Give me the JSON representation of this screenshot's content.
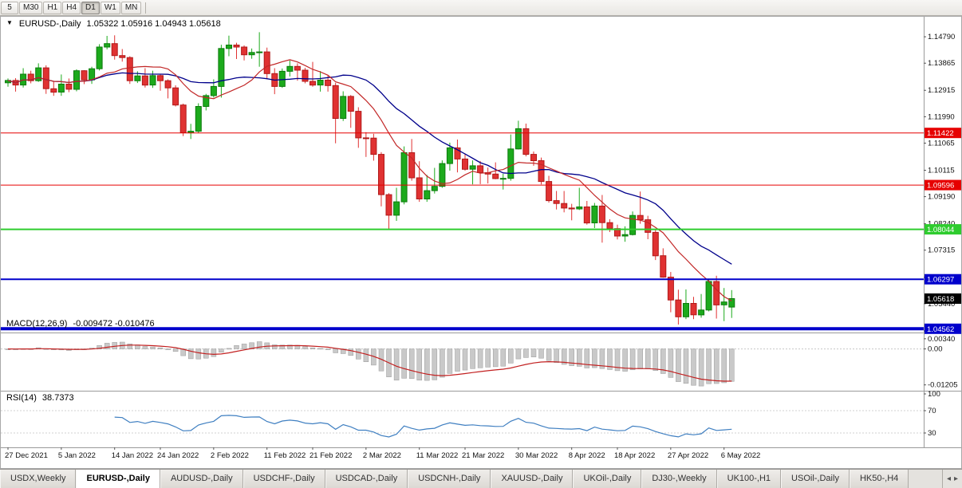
{
  "toolbar": {
    "timeframes": [
      "5",
      "M30",
      "H1",
      "H4",
      "D1",
      "W1",
      "MN"
    ],
    "active_timeframe": "D1"
  },
  "header": {
    "symbol": "EURUSD-,Daily",
    "ohlc": "1.05322 1.05916 1.04943 1.05618"
  },
  "macd_panel": {
    "label": "MACD(12,26,9)",
    "values": "-0.009472 -0.010476",
    "axis": [
      {
        "value": 0.0034,
        "label": "0.00340"
      },
      {
        "value": 0,
        "label": "0.00"
      },
      {
        "value": -0.01205,
        "label": "-0.01205"
      }
    ]
  },
  "rsi_panel": {
    "label": "RSI(14)",
    "value": "38.7373",
    "axis": [
      {
        "value": 100,
        "label": "100"
      },
      {
        "value": 70,
        "label": "70"
      },
      {
        "value": 30,
        "label": "30"
      }
    ]
  },
  "price_axis": {
    "labels": [
      1.1479,
      1.13865,
      1.12915,
      1.1199,
      1.11065,
      1.10115,
      1.0919,
      1.0824,
      1.07315,
      1.06365,
      1.0544,
      1.0449
    ],
    "current_price": 1.05618,
    "current_price_box_color": "#000000"
  },
  "levels": [
    {
      "price": 1.11422,
      "color": "#e60000",
      "thickness": 1
    },
    {
      "price": 1.09596,
      "color": "#e60000",
      "thickness": 1
    },
    {
      "price": 1.08044,
      "color": "#2ecc2e",
      "thickness": 2
    },
    {
      "price": 1.06297,
      "color": "#0000cc",
      "thickness": 2
    },
    {
      "price": 1.04562,
      "color": "#0000cc",
      "thickness": 4
    }
  ],
  "tabs": {
    "items": [
      "USDX,Weekly",
      "EURUSD-,Daily",
      "AUDUSD-,Daily",
      "USDCHF-,Daily",
      "USDCAD-,Daily",
      "USDCNH-,Daily",
      "XAUUSD-,Daily",
      "UKOil-,Daily",
      "DJ30-,Weekly",
      "UK100-,H1",
      "USOil-,Daily",
      "HK50-,H4"
    ],
    "active_index": 1
  },
  "chart_data": {
    "type": "candlestick",
    "symbol": "EURUSD-",
    "timeframe": "Daily",
    "colors": {
      "up": "#1caa1c",
      "up_border": "#0c7a0c",
      "down": "#e03232",
      "down_border": "#b01919"
    },
    "x_ticks": [
      {
        "i": 0,
        "label": "27 Dec 2021"
      },
      {
        "i": 7,
        "label": "5 Jan 2022"
      },
      {
        "i": 14,
        "label": "14 Jan 2022"
      },
      {
        "i": 20,
        "label": "24 Jan 2022"
      },
      {
        "i": 27,
        "label": "2 Feb 2022"
      },
      {
        "i": 34,
        "label": "11 Feb 2022"
      },
      {
        "i": 40,
        "label": "21 Feb 2022"
      },
      {
        "i": 47,
        "label": "2 Mar 2022"
      },
      {
        "i": 54,
        "label": "11 Mar 2022"
      },
      {
        "i": 60,
        "label": "21 Mar 2022"
      },
      {
        "i": 67,
        "label": "30 Mar 2022"
      },
      {
        "i": 74,
        "label": "8 Apr 2022"
      },
      {
        "i": 80,
        "label": "18 Apr 2022"
      },
      {
        "i": 87,
        "label": "27 Apr 2022"
      },
      {
        "i": 94,
        "label": "6 May 2022"
      }
    ],
    "moving_averages": [
      {
        "name": "slow",
        "period": 20,
        "color": "#00008b",
        "width": 1.3
      },
      {
        "name": "fast",
        "period": 10,
        "color": "#c22727",
        "width": 1.2
      }
    ],
    "indicators": {
      "macd": {
        "params": [
          12,
          26,
          9
        ],
        "current": [
          -0.009472,
          -0.010476
        ],
        "histogram_color": "#c9c9c9",
        "signal_color": "#c22020"
      },
      "rsi": {
        "period": 14,
        "current": 38.7373,
        "line_color": "#3f7fc1",
        "levels": [
          30,
          70
        ]
      }
    },
    "dates": [
      "2021-12-27",
      "2021-12-28",
      "2021-12-29",
      "2021-12-30",
      "2021-12-31",
      "2022-01-03",
      "2022-01-04",
      "2022-01-05",
      "2022-01-06",
      "2022-01-07",
      "2022-01-10",
      "2022-01-11",
      "2022-01-12",
      "2022-01-13",
      "2022-01-14",
      "2022-01-17",
      "2022-01-18",
      "2022-01-19",
      "2022-01-20",
      "2022-01-21",
      "2022-01-24",
      "2022-01-25",
      "2022-01-26",
      "2022-01-27",
      "2022-01-28",
      "2022-01-31",
      "2022-02-01",
      "2022-02-02",
      "2022-02-03",
      "2022-02-04",
      "2022-02-07",
      "2022-02-08",
      "2022-02-09",
      "2022-02-10",
      "2022-02-11",
      "2022-02-14",
      "2022-02-15",
      "2022-02-16",
      "2022-02-17",
      "2022-02-18",
      "2022-02-21",
      "2022-02-22",
      "2022-02-23",
      "2022-02-24",
      "2022-02-25",
      "2022-02-28",
      "2022-03-01",
      "2022-03-02",
      "2022-03-03",
      "2022-03-04",
      "2022-03-07",
      "2022-03-08",
      "2022-03-09",
      "2022-03-10",
      "2022-03-11",
      "2022-03-14",
      "2022-03-15",
      "2022-03-16",
      "2022-03-17",
      "2022-03-18",
      "2022-03-21",
      "2022-03-22",
      "2022-03-23",
      "2022-03-24",
      "2022-03-25",
      "2022-03-28",
      "2022-03-29",
      "2022-03-30",
      "2022-03-31",
      "2022-04-01",
      "2022-04-04",
      "2022-04-05",
      "2022-04-06",
      "2022-04-07",
      "2022-04-08",
      "2022-04-11",
      "2022-04-12",
      "2022-04-13",
      "2022-04-14",
      "2022-04-15",
      "2022-04-18",
      "2022-04-19",
      "2022-04-20",
      "2022-04-21",
      "2022-04-22",
      "2022-04-25",
      "2022-04-26",
      "2022-04-27",
      "2022-04-28",
      "2022-04-29",
      "2022-05-02",
      "2022-05-03",
      "2022-05-04",
      "2022-05-05",
      "2022-05-06",
      "2022-05-09"
    ],
    "ohlc": [
      [
        1.1318,
        1.1333,
        1.1304,
        1.1326
      ],
      [
        1.1326,
        1.1334,
        1.1287,
        1.131
      ],
      [
        1.131,
        1.1369,
        1.1301,
        1.1348
      ],
      [
        1.1348,
        1.136,
        1.1316,
        1.1325
      ],
      [
        1.1325,
        1.1386,
        1.1321,
        1.137
      ],
      [
        1.137,
        1.1379,
        1.1279,
        1.1297
      ],
      [
        1.1297,
        1.1323,
        1.1272,
        1.1285
      ],
      [
        1.1285,
        1.1347,
        1.1272,
        1.1313
      ],
      [
        1.1313,
        1.1333,
        1.1285,
        1.1295
      ],
      [
        1.1295,
        1.1365,
        1.1288,
        1.136
      ],
      [
        1.136,
        1.1362,
        1.1313,
        1.1328
      ],
      [
        1.1328,
        1.1374,
        1.1314,
        1.1367
      ],
      [
        1.1367,
        1.1453,
        1.1361,
        1.1443
      ],
      [
        1.1443,
        1.1482,
        1.1435,
        1.1455
      ],
      [
        1.1455,
        1.1484,
        1.1399,
        1.1413
      ],
      [
        1.1413,
        1.1436,
        1.1392,
        1.1406
      ],
      [
        1.1406,
        1.1411,
        1.1314,
        1.1325
      ],
      [
        1.1325,
        1.1358,
        1.1317,
        1.1342
      ],
      [
        1.1342,
        1.1369,
        1.1301,
        1.131
      ],
      [
        1.131,
        1.136,
        1.13,
        1.1343
      ],
      [
        1.1343,
        1.1349,
        1.129,
        1.1325
      ],
      [
        1.1325,
        1.133,
        1.1263,
        1.13
      ],
      [
        1.13,
        1.1309,
        1.1235,
        1.124
      ],
      [
        1.124,
        1.1245,
        1.1131,
        1.1143
      ],
      [
        1.1143,
        1.1174,
        1.1121,
        1.1148
      ],
      [
        1.1148,
        1.1246,
        1.1141,
        1.1235
      ],
      [
        1.1235,
        1.1279,
        1.1221,
        1.1273
      ],
      [
        1.1273,
        1.133,
        1.1266,
        1.1305
      ],
      [
        1.1305,
        1.1451,
        1.1266,
        1.1438
      ],
      [
        1.1438,
        1.1483,
        1.1411,
        1.145
      ],
      [
        1.145,
        1.1458,
        1.1401,
        1.1443
      ],
      [
        1.1443,
        1.1449,
        1.1396,
        1.1416
      ],
      [
        1.1416,
        1.1438,
        1.1402,
        1.1424
      ],
      [
        1.1424,
        1.1495,
        1.1374,
        1.1426
      ],
      [
        1.1426,
        1.1441,
        1.133,
        1.135
      ],
      [
        1.135,
        1.1369,
        1.1278,
        1.1305
      ],
      [
        1.1305,
        1.1368,
        1.13,
        1.1358
      ],
      [
        1.1358,
        1.1396,
        1.134,
        1.1375
      ],
      [
        1.1375,
        1.1386,
        1.1325,
        1.1362
      ],
      [
        1.1362,
        1.137,
        1.1316,
        1.1323
      ],
      [
        1.1323,
        1.1391,
        1.1304,
        1.131
      ],
      [
        1.131,
        1.1359,
        1.1287,
        1.1327
      ],
      [
        1.1327,
        1.1343,
        1.1287,
        1.1308
      ],
      [
        1.1308,
        1.1318,
        1.1106,
        1.1193
      ],
      [
        1.1193,
        1.1288,
        1.1184,
        1.127
      ],
      [
        1.127,
        1.1275,
        1.116,
        1.1218
      ],
      [
        1.1218,
        1.1232,
        1.109,
        1.1125
      ],
      [
        1.1125,
        1.1145,
        1.1058,
        1.1124
      ],
      [
        1.1124,
        1.1139,
        1.1045,
        1.1067
      ],
      [
        1.1067,
        1.1075,
        1.0885,
        1.0926
      ],
      [
        1.0926,
        1.0931,
        1.0806,
        1.0854
      ],
      [
        1.0854,
        1.095,
        1.0834,
        1.0901
      ],
      [
        1.0901,
        1.1095,
        1.0892,
        1.1073
      ],
      [
        1.1073,
        1.1121,
        1.0975,
        1.0985
      ],
      [
        1.0985,
        1.1043,
        1.0901,
        1.0911
      ],
      [
        1.0911,
        1.0995,
        1.0901,
        1.094
      ],
      [
        1.094,
        1.102,
        1.093,
        1.0955
      ],
      [
        1.0955,
        1.1046,
        1.095,
        1.1035
      ],
      [
        1.1035,
        1.1108,
        1.101,
        1.109
      ],
      [
        1.109,
        1.1119,
        1.1004,
        1.1051
      ],
      [
        1.1051,
        1.1069,
        1.101,
        1.1015
      ],
      [
        1.1015,
        1.1046,
        1.0962,
        1.1027
      ],
      [
        1.1027,
        1.1044,
        1.0963,
        1.1003
      ],
      [
        1.1003,
        1.1021,
        1.0965,
        1.0998
      ],
      [
        1.0998,
        1.1039,
        1.098,
        1.0982
      ],
      [
        1.0982,
        1.0999,
        1.0944,
        1.0983
      ],
      [
        1.0983,
        1.1137,
        1.0975,
        1.1086
      ],
      [
        1.1086,
        1.1185,
        1.1084,
        1.1157
      ],
      [
        1.1157,
        1.1175,
        1.106,
        1.1067
      ],
      [
        1.1067,
        1.1077,
        1.1027,
        1.1045
      ],
      [
        1.1045,
        1.1056,
        1.0962,
        1.0972
      ],
      [
        1.0972,
        1.0992,
        1.0898,
        1.0905
      ],
      [
        1.0905,
        1.0939,
        1.0874,
        1.0895
      ],
      [
        1.0895,
        1.0939,
        1.0864,
        1.0879
      ],
      [
        1.0879,
        1.0894,
        1.0836,
        1.0876
      ],
      [
        1.0876,
        1.095,
        1.0872,
        1.0883
      ],
      [
        1.0883,
        1.0904,
        1.0821,
        1.0827
      ],
      [
        1.0827,
        1.0897,
        1.0809,
        1.0886
      ],
      [
        1.0886,
        1.0925,
        1.0758,
        1.0828
      ],
      [
        1.0828,
        1.084,
        1.0795,
        1.0807
      ],
      [
        1.0807,
        1.0821,
        1.0769,
        1.0781
      ],
      [
        1.0781,
        1.0815,
        1.0761,
        1.0786
      ],
      [
        1.0786,
        1.0867,
        1.0783,
        1.0853
      ],
      [
        1.0853,
        1.0937,
        1.0824,
        1.0838
      ],
      [
        1.0838,
        1.0852,
        1.077,
        1.0794
      ],
      [
        1.0794,
        1.0805,
        1.0697,
        1.0712
      ],
      [
        1.0712,
        1.0738,
        1.0635,
        1.0637
      ],
      [
        1.0637,
        1.0655,
        1.0514,
        1.0557
      ],
      [
        1.0557,
        1.0593,
        1.0471,
        1.0498
      ],
      [
        1.0498,
        1.0594,
        1.049,
        1.0545
      ],
      [
        1.0545,
        1.0568,
        1.049,
        1.0505
      ],
      [
        1.0505,
        1.0578,
        1.0495,
        1.0522
      ],
      [
        1.0522,
        1.0632,
        1.0517,
        1.0622
      ],
      [
        1.0622,
        1.0642,
        1.0492,
        1.054
      ],
      [
        1.054,
        1.0599,
        1.0483,
        1.055
      ],
      [
        1.05322,
        1.05916,
        1.04943,
        1.05618
      ]
    ]
  }
}
